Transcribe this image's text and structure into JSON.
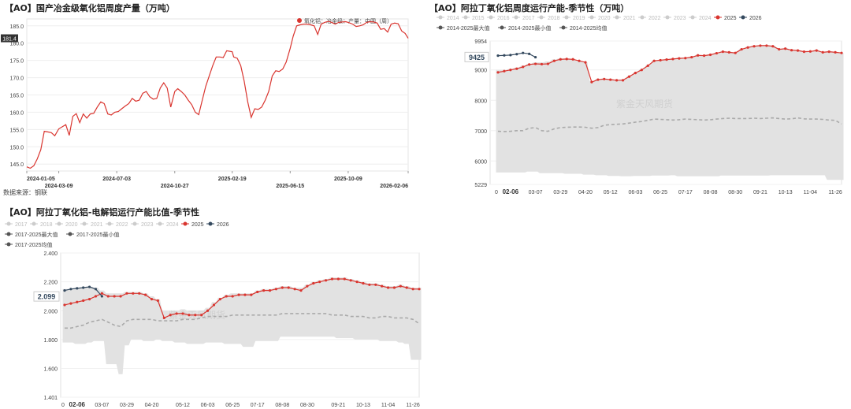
{
  "chart_data": [
    {
      "type": "line",
      "title": "【AO】国产冶金级氧化铝周度产量（万吨）",
      "legend_text": "氧化铝：冶金级：产量：中国（周）",
      "legend_color": "#d9352f",
      "source": "数据来源：钢联",
      "ylim": [
        143,
        187
      ],
      "y_ticks": [
        "145.0",
        "150.0",
        "155.0",
        "160.0",
        "165.0",
        "170.0",
        "175.0",
        "180.0",
        "185.0"
      ],
      "x_ticks": [
        "2024-01-05",
        "2024-03-09",
        "2024-07-03",
        "2024-10-27",
        "2025-02-19",
        "2025-06-15",
        "2025-10-09",
        "2026-02-06"
      ],
      "last_value_label": "181.4",
      "series": [
        {
          "color": "#d9352f",
          "x": [
            "2024-01-05",
            "2024-01-12",
            "2024-01-19",
            "2024-01-26",
            "2024-02-02",
            "2024-02-09",
            "2024-02-16",
            "2024-02-23",
            "2024-03-01",
            "2024-03-09",
            "2024-03-16",
            "2024-03-23",
            "2024-03-30",
            "2024-04-06",
            "2024-04-13",
            "2024-04-20",
            "2024-04-27",
            "2024-05-04",
            "2024-05-11",
            "2024-05-18",
            "2024-05-25",
            "2024-06-01",
            "2024-06-08",
            "2024-06-15",
            "2024-06-22",
            "2024-06-29",
            "2024-07-06",
            "2024-07-13",
            "2024-07-20",
            "2024-07-27",
            "2024-08-03",
            "2024-08-10",
            "2024-08-17",
            "2024-08-24",
            "2024-08-31",
            "2024-09-07",
            "2024-09-14",
            "2024-09-21",
            "2024-09-28",
            "2024-10-05",
            "2024-10-12",
            "2024-10-19",
            "2024-10-27",
            "2024-11-02",
            "2024-11-09",
            "2024-11-16",
            "2024-11-23",
            "2024-11-30",
            "2024-12-07",
            "2024-12-14",
            "2024-12-21",
            "2024-12-28",
            "2025-01-04",
            "2025-01-11",
            "2025-01-18",
            "2025-01-25",
            "2025-02-01",
            "2025-02-08",
            "2025-02-19",
            "2025-02-22",
            "2025-03-01",
            "2025-03-08",
            "2025-03-15",
            "2025-03-22",
            "2025-03-29",
            "2025-04-05",
            "2025-04-12",
            "2025-04-19",
            "2025-04-26",
            "2025-05-03",
            "2025-05-10",
            "2025-05-17",
            "2025-05-24",
            "2025-05-31",
            "2025-06-07",
            "2025-06-15",
            "2025-06-21",
            "2025-06-28",
            "2025-07-05",
            "2025-07-12",
            "2025-07-19",
            "2025-07-26",
            "2025-08-02",
            "2025-08-09",
            "2025-08-16",
            "2025-08-23",
            "2025-08-30",
            "2025-09-06",
            "2025-09-13",
            "2025-09-20",
            "2025-09-27",
            "2025-10-04",
            "2025-10-09",
            "2025-10-18",
            "2025-10-25",
            "2025-11-01",
            "2025-11-08",
            "2025-11-15",
            "2025-11-22",
            "2025-11-29",
            "2025-12-06",
            "2025-12-13",
            "2025-12-20",
            "2025-12-27",
            "2026-01-03",
            "2026-01-10",
            "2026-01-17",
            "2026-01-24",
            "2026-01-31",
            "2026-02-06"
          ],
          "y": [
            144.2,
            143.8,
            144.5,
            146.5,
            149.2,
            154.5,
            154.3,
            154.1,
            153.2,
            155.2,
            155.8,
            156.4,
            153.3,
            158.8,
            159.6,
            157.0,
            159.5,
            158.3,
            159.5,
            159.7,
            161.5,
            163.0,
            162.5,
            159.5,
            159.2,
            160.0,
            160.2,
            161.0,
            161.8,
            162.5,
            164.0,
            163.2,
            163.5,
            165.5,
            166.0,
            164.5,
            163.8,
            164.0,
            167.0,
            168.5,
            167.0,
            161.5,
            166.0,
            166.8,
            166.0,
            165.0,
            163.5,
            162.2,
            160.0,
            159.3,
            163.5,
            167.5,
            170.5,
            173.5,
            176.0,
            176.0,
            175.8,
            177.8,
            177.5,
            176.0,
            175.6,
            173.5,
            169.0,
            163.0,
            158.5,
            161.0,
            160.8,
            161.5,
            163.5,
            166.0,
            170.5,
            172.0,
            171.8,
            172.5,
            174.5,
            178.5,
            182.0,
            185.0,
            185.3,
            185.5,
            185.5,
            185.3,
            185.0,
            182.5,
            185.5,
            186.0,
            186.3,
            186.0,
            185.5,
            186.0,
            186.1,
            186.2,
            186.0,
            185.5,
            184.8,
            185.0,
            185.3,
            186.0,
            186.2,
            186.1,
            185.8,
            184.0,
            184.2,
            183.2,
            185.5,
            185.8,
            185.6,
            183.5,
            182.8,
            181.4
          ]
        }
      ]
    },
    {
      "type": "line",
      "title": "【AO】阿拉丁氧化铝周度运行产能-季节性（万吨）",
      "legend": [
        {
          "name": "2014",
          "color": "#cccccc"
        },
        {
          "name": "2015",
          "color": "#cccccc"
        },
        {
          "name": "2016",
          "color": "#cccccc"
        },
        {
          "name": "2017",
          "color": "#cccccc"
        },
        {
          "name": "2018",
          "color": "#cccccc"
        },
        {
          "name": "2019",
          "color": "#cccccc"
        },
        {
          "name": "2020",
          "color": "#cccccc"
        },
        {
          "name": "2021",
          "color": "#cccccc"
        },
        {
          "name": "2022",
          "color": "#cccccc"
        },
        {
          "name": "2023",
          "color": "#cccccc"
        },
        {
          "name": "2024",
          "color": "#cccccc"
        },
        {
          "name": "2025",
          "color": "#d9352f"
        },
        {
          "name": "2026",
          "color": "#34495e"
        },
        {
          "name": "2014-2025最大值",
          "color": "#555555"
        },
        {
          "name": "2014-2025最小值",
          "color": "#555555"
        },
        {
          "name": "2014-2025均值",
          "color": "#555555"
        }
      ],
      "ylim": [
        5229,
        9954
      ],
      "y_ticks": [
        "5229",
        "6000",
        "7000",
        "8000",
        "9000",
        "9954"
      ],
      "x_ticks": [
        "0",
        "02-06",
        "03-07",
        "03-29",
        "04-20",
        "05-12",
        "06-03",
        "06-25",
        "07-17",
        "08-08",
        "08-30",
        "09-21",
        "10-13",
        "11-04",
        "11-26"
      ],
      "highlight_x": "02-06",
      "last_value_label": "9425",
      "watermark": "紫金天风期货",
      "series_2025": [
        8920,
        8960,
        9000,
        9040,
        9100,
        9180,
        9200,
        9190,
        9200,
        9300,
        9350,
        9360,
        9350,
        9300,
        9250,
        8600,
        8680,
        8700,
        8680,
        8660,
        8660,
        8780,
        8900,
        9000,
        9140,
        9300,
        9320,
        9340,
        9360,
        9380,
        9390,
        9420,
        9480,
        9470,
        9500,
        9550,
        9600,
        9580,
        9560,
        9680,
        9740,
        9780,
        9800,
        9800,
        9780,
        9680,
        9700,
        9650,
        9640,
        9600,
        9610,
        9640,
        9580,
        9600,
        9580,
        9560
      ],
      "series_2026": [
        9470,
        9480,
        9490,
        9520,
        9560,
        9530,
        9420
      ],
      "series_max": [
        9000,
        9000,
        9030,
        9080,
        9140,
        9200,
        9250,
        9250,
        9280,
        9350,
        9380,
        9380,
        9360,
        9300,
        9250,
        8630,
        8700,
        8720,
        8700,
        8680,
        8690,
        8800,
        8920,
        9020,
        9160,
        9320,
        9340,
        9360,
        9380,
        9400,
        9410,
        9440,
        9500,
        9490,
        9520,
        9570,
        9620,
        9600,
        9580,
        9700,
        9760,
        9800,
        9820,
        9820,
        9800,
        9700,
        9720,
        9680,
        9660,
        9620,
        9630,
        9660,
        9600,
        9620,
        9600,
        9560
      ],
      "series_min": [
        5620,
        5620,
        5620,
        5620,
        5620,
        5650,
        5650,
        5600,
        5600,
        5600,
        5600,
        5580,
        5580,
        5580,
        5550,
        5550,
        5530,
        5530,
        5510,
        5510,
        5500,
        5500,
        5510,
        5510,
        5510,
        5520,
        5520,
        5520,
        5530,
        5500,
        5500,
        5500,
        5500,
        5500,
        5500,
        5500,
        5520,
        5520,
        5520,
        5520,
        5520,
        5520,
        5520,
        5520,
        5530,
        5530,
        5530,
        5530,
        5530,
        5530,
        5530,
        5530,
        5530,
        5380,
        5380,
        5380
      ],
      "series_avg": [
        6980,
        6970,
        6980,
        7000,
        7000,
        7080,
        7100,
        7000,
        6980,
        7060,
        7100,
        7110,
        7120,
        7120,
        7110,
        7080,
        7100,
        7180,
        7200,
        7210,
        7220,
        7250,
        7280,
        7300,
        7340,
        7380,
        7370,
        7360,
        7350,
        7360,
        7380,
        7370,
        7360,
        7350,
        7360,
        7380,
        7400,
        7410,
        7400,
        7400,
        7400,
        7410,
        7400,
        7410,
        7420,
        7400,
        7380,
        7390,
        7420,
        7390,
        7380,
        7380,
        7370,
        7350,
        7340,
        7220
      ]
    },
    {
      "type": "line",
      "title": "【AO】阿拉丁氧化铝-电解铝运行产能比值-季节性",
      "legend": [
        {
          "name": "2017",
          "color": "#cccccc"
        },
        {
          "name": "2018",
          "color": "#cccccc"
        },
        {
          "name": "2020",
          "color": "#cccccc"
        },
        {
          "name": "2021",
          "color": "#cccccc"
        },
        {
          "name": "2022",
          "color": "#cccccc"
        },
        {
          "name": "2023",
          "color": "#cccccc"
        },
        {
          "name": "2024",
          "color": "#cccccc"
        },
        {
          "name": "2025",
          "color": "#d9352f"
        },
        {
          "name": "2026",
          "color": "#34495e"
        },
        {
          "name": "2017-2025最大值",
          "color": "#555555"
        },
        {
          "name": "2017-2025最小值",
          "color": "#555555"
        },
        {
          "name": "2017-2025均值",
          "color": "#555555"
        }
      ],
      "ylim": [
        1.401,
        2.4
      ],
      "y_ticks": [
        "1.401",
        "1.600",
        "1.800",
        "2.000",
        "2.200",
        "2.400"
      ],
      "x_ticks": [
        "0",
        "02-06",
        "03-07",
        "03-29",
        "04-20",
        "05-12",
        "06-03",
        "06-25",
        "07-17",
        "08-08",
        "08-30",
        "09-21",
        "10-13",
        "11-04",
        "11-26"
      ],
      "highlight_x": "02-06",
      "last_value_label": "2.099",
      "watermark": "紫金天风期货",
      "series_2025": [
        2.04,
        2.05,
        2.06,
        2.07,
        2.08,
        2.1,
        2.12,
        2.1,
        2.1,
        2.1,
        2.12,
        2.12,
        2.12,
        2.11,
        2.08,
        2.07,
        1.95,
        1.97,
        1.98,
        1.98,
        1.97,
        1.97,
        1.97,
        2.0,
        2.04,
        2.08,
        2.1,
        2.1,
        2.11,
        2.11,
        2.11,
        2.13,
        2.14,
        2.14,
        2.15,
        2.16,
        2.16,
        2.15,
        2.14,
        2.17,
        2.19,
        2.2,
        2.21,
        2.22,
        2.22,
        2.22,
        2.21,
        2.2,
        2.19,
        2.18,
        2.18,
        2.17,
        2.16,
        2.16,
        2.17,
        2.16,
        2.15,
        2.15
      ],
      "series_2026": [
        2.14,
        2.15,
        2.155,
        2.16,
        2.165,
        2.15,
        2.1
      ],
      "series_max": [
        2.15,
        2.15,
        2.155,
        2.16,
        2.165,
        2.16,
        2.14,
        2.12,
        2.12,
        2.12,
        2.13,
        2.13,
        2.13,
        2.12,
        2.1,
        2.08,
        2.0,
        2.0,
        2.0,
        2.01,
        2.0,
        2.0,
        2.0,
        2.02,
        2.06,
        2.09,
        2.11,
        2.12,
        2.12,
        2.12,
        2.12,
        2.14,
        2.15,
        2.15,
        2.16,
        2.17,
        2.17,
        2.16,
        2.16,
        2.18,
        2.2,
        2.21,
        2.22,
        2.23,
        2.23,
        2.23,
        2.22,
        2.21,
        2.2,
        2.19,
        2.19,
        2.18,
        2.17,
        2.17,
        2.18,
        2.17,
        2.16,
        2.16
      ],
      "series_min": [
        1.78,
        1.78,
        1.77,
        1.77,
        1.78,
        1.79,
        1.79,
        1.63,
        1.63,
        1.56,
        1.76,
        1.8,
        1.8,
        1.79,
        1.79,
        1.8,
        1.79,
        1.79,
        1.78,
        1.78,
        1.77,
        1.77,
        1.77,
        1.78,
        1.78,
        1.78,
        1.77,
        1.77,
        1.77,
        1.75,
        1.75,
        1.79,
        1.79,
        1.79,
        1.79,
        1.82,
        1.82,
        1.82,
        1.82,
        1.82,
        1.82,
        1.82,
        1.82,
        1.82,
        1.81,
        1.81,
        1.81,
        1.8,
        1.8,
        1.8,
        1.8,
        1.79,
        1.79,
        1.79,
        1.78,
        1.77,
        1.66,
        1.66
      ],
      "series_avg": [
        1.88,
        1.88,
        1.89,
        1.9,
        1.92,
        1.93,
        1.94,
        1.92,
        1.9,
        1.89,
        1.93,
        1.94,
        1.94,
        1.94,
        1.94,
        1.93,
        1.93,
        1.93,
        1.93,
        1.94,
        1.94,
        1.94,
        1.95,
        1.96,
        1.96,
        1.96,
        1.96,
        1.97,
        1.97,
        1.97,
        1.97,
        1.97,
        1.97,
        1.97,
        1.97,
        1.98,
        1.98,
        1.98,
        1.98,
        1.98,
        1.98,
        1.98,
        1.98,
        1.97,
        1.97,
        1.97,
        1.96,
        1.96,
        1.96,
        1.95,
        1.95,
        1.96,
        1.96,
        1.95,
        1.95,
        1.95,
        1.94,
        1.91
      ]
    }
  ]
}
